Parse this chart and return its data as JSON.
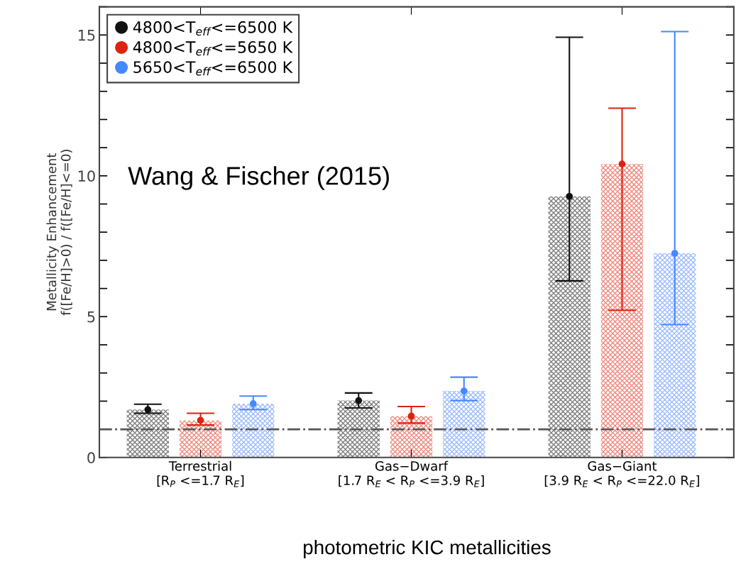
{
  "chart_data": {
    "type": "bar",
    "ylabel": "Metallicity Enhancement\nf([Fe/H]>0) / f([Fe/H]<=0)",
    "categories": [
      "Terrestrial\n[R$_{P}$ <=1.7 R$_{E}$]",
      "Gas−Dwarf\n[1.7 R$_{E}$ < R$_{P}$ <=3.9 R$_{E}$]",
      "Gas−Giant\n[3.9 R$_{E}$ < R$_{P}$ <=22.0 R$_{E}$]"
    ],
    "series": [
      {
        "color": "#808080",
        "values": [
          1.7,
          2.02,
          9.27
        ]
      },
      {
        "color": "#f08a80",
        "values": [
          1.32,
          1.47,
          10.42
        ]
      },
      {
        "color": "#9dbcff",
        "values": [
          1.91,
          2.36,
          7.25
        ]
      },
      {
        "type": "scatter",
        "name": "4800<T$_{eff}$<=6500 K",
        "color": "#111111",
        "values": [
          1.7,
          2.02,
          9.27
        ],
        "errors": [
          [
            1.57,
            1.89
          ],
          [
            1.76,
            2.29
          ],
          [
            6.27,
            14.92
          ]
        ]
      },
      {
        "type": "scatter",
        "name": "4800<T$_{eff}$<=5650 K",
        "color": "#dd2211",
        "values": [
          1.32,
          1.47,
          10.42
        ],
        "errors": [
          [
            1.15,
            1.57
          ],
          [
            1.22,
            1.81
          ],
          [
            5.23,
            12.4
          ]
        ]
      },
      {
        "type": "scatter",
        "name": "5650<T$_{eff}$<=6500 K",
        "color": "#4488ff",
        "values": [
          1.91,
          2.36,
          7.25
        ],
        "errors": [
          [
            1.7,
            2.18
          ],
          [
            2.02,
            2.85
          ],
          [
            4.72,
            15.12
          ]
        ]
      }
    ],
    "ylim": [
      0,
      16
    ],
    "yticks": [
      0,
      {
        "value": 1,
        "label": null
      },
      {
        "value": 2,
        "label": null
      },
      {
        "value": 3,
        "label": null
      },
      {
        "value": 4,
        "label": null
      },
      5,
      {
        "value": 6,
        "label": null
      },
      {
        "value": 7,
        "label": null
      },
      {
        "value": 8,
        "label": null
      },
      {
        "value": 9,
        "label": null
      },
      10,
      {
        "value": 11,
        "label": null
      },
      {
        "value": 12,
        "label": null
      },
      {
        "value": 13,
        "label": null
      },
      {
        "value": 14,
        "label": null
      },
      15,
      {
        "value": 16,
        "label": null
      }
    ],
    "ref_lines": [
      {
        "axis": "y",
        "value": 1,
        "color": "#555555",
        "line_style": "dashdot"
      }
    ],
    "annotations": [
      "Wang & Fischer (2015)",
      "photometric KIC metallicities"
    ],
    "marker": "circle",
    "legend": "top left",
    "grid": false
  }
}
